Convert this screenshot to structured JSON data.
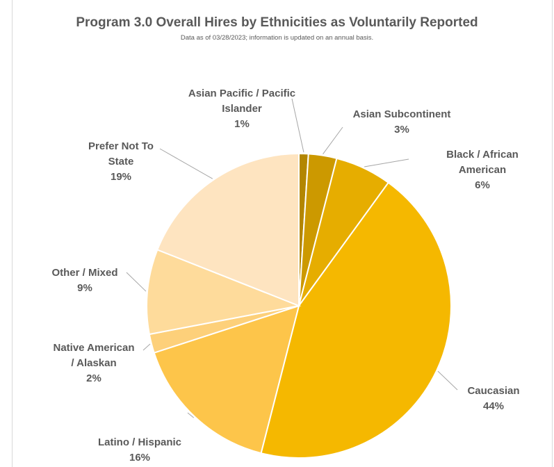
{
  "chart_data": {
    "type": "pie",
    "title": "Program 3.0 Overall Hires by Ethnicities as Voluntarily Reported",
    "subtitle": "Data as of 03/28/2023; information is updated on an annual basis.",
    "slices": [
      {
        "name": "Asian Pacific / Pacific Islander",
        "label_lines": [
          "Asian Pacific / Pacific",
          "Islander"
        ],
        "value": 1,
        "value_label": "1%",
        "color": "#b38600"
      },
      {
        "name": "Asian Subcontinent",
        "label_lines": [
          "Asian Subcontinent"
        ],
        "value": 3,
        "value_label": "3%",
        "color": "#cc9900"
      },
      {
        "name": "Black / African American",
        "label_lines": [
          "Black / African",
          "American"
        ],
        "value": 6,
        "value_label": "6%",
        "color": "#e6ad00"
      },
      {
        "name": "Caucasian",
        "label_lines": [
          "Caucasian"
        ],
        "value": 44,
        "value_label": "44%",
        "color": "#f5b800"
      },
      {
        "name": "Latino / Hispanic",
        "label_lines": [
          "Latino / Hispanic"
        ],
        "value": 16,
        "value_label": "16%",
        "color": "#fdc54a"
      },
      {
        "name": "Native American / Alaskan",
        "label_lines": [
          "Native American",
          "/ Alaskan"
        ],
        "value": 2,
        "value_label": "2%",
        "color": "#fdd07a"
      },
      {
        "name": "Other / Mixed",
        "label_lines": [
          "Other / Mixed"
        ],
        "value": 9,
        "value_label": "9%",
        "color": "#fedb9b"
      },
      {
        "name": "Prefer Not To State",
        "label_lines": [
          "Prefer Not To",
          "State"
        ],
        "value": 19,
        "value_label": "19%",
        "color": "#fee4c0"
      }
    ]
  }
}
